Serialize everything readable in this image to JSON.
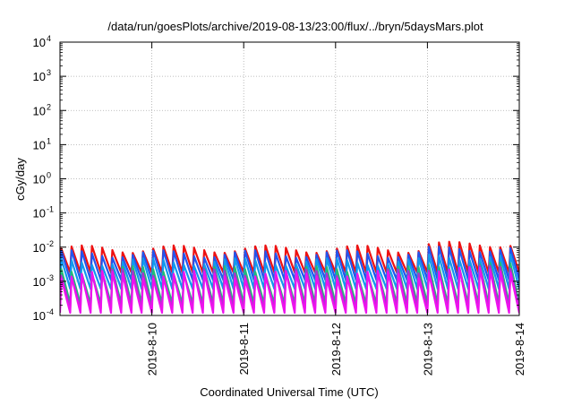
{
  "chart_data": {
    "type": "line",
    "title": "/data/run/goesPlots/archive/2019-08-13/23:00/flux/../bryn/5daysMars.plot",
    "xlabel": "Coordinated Universal Time (UTC)",
    "ylabel": "cGy/day",
    "yscale": "log",
    "ylim": [
      0.0001,
      10000
    ],
    "xlim": [
      "2019-8-9",
      "2019-8-14"
    ],
    "grid": true,
    "x_tick_labels": [
      "2019-8-10",
      "2019-8-11",
      "2019-8-12",
      "2019-8-13",
      "2019-8-14"
    ],
    "y_tick_labels": [
      {
        "base": "10",
        "exp": "-4"
      },
      {
        "base": "10",
        "exp": "-3"
      },
      {
        "base": "10",
        "exp": "-2"
      },
      {
        "base": "10",
        "exp": "-1"
      },
      {
        "base": "10",
        "exp": "0"
      },
      {
        "base": "10",
        "exp": "1"
      },
      {
        "base": "10",
        "exp": "2"
      },
      {
        "base": "10",
        "exp": "3"
      },
      {
        "base": "10",
        "exp": "4"
      }
    ],
    "sawtooth_teeth_per_day": 9,
    "series": [
      {
        "color": "#ee1111",
        "peak": 0.009,
        "trough": 0.0018
      },
      {
        "color": "#2255ee",
        "peak": 0.0065,
        "trough": 0.0011
      },
      {
        "color": "#1199ee",
        "peak": 0.0038,
        "trough": 0.0006
      },
      {
        "color": "#22bb77",
        "peak": 0.0022,
        "trough": 0.00022
      },
      {
        "color": "#aa33cc",
        "peak": 0.0018,
        "trough": 0.00016
      },
      {
        "color": "#ee11ee",
        "peak": 0.0016,
        "trough": 0.00012
      }
    ]
  }
}
